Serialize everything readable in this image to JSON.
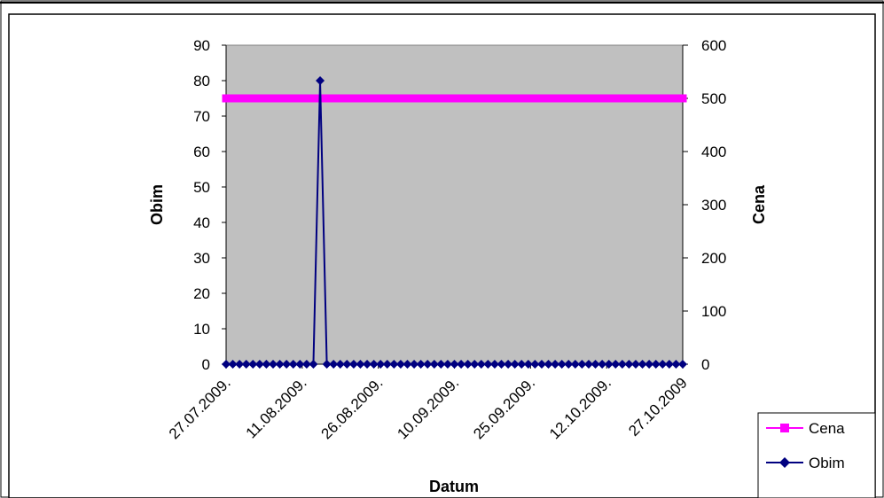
{
  "chart_data": {
    "type": "line",
    "title": "",
    "xlabel": "Datum",
    "ylabel_left": "Obim",
    "ylabel_right": "Cena",
    "x_ticks": [
      "27.07.2009.",
      "11.08.2009.",
      "26.08.2009.",
      "10.09.2009.",
      "25.09.2009.",
      "12.10.2009.",
      "27.10.2009"
    ],
    "y_left": {
      "min": 0,
      "max": 90,
      "step": 10,
      "ticks": [
        "0",
        "10",
        "20",
        "30",
        "40",
        "50",
        "60",
        "70",
        "80",
        "90"
      ]
    },
    "y_right": {
      "min": 0,
      "max": 600,
      "step": 100,
      "ticks": [
        "0",
        "100",
        "200",
        "300",
        "400",
        "500",
        "600"
      ]
    },
    "grid": false,
    "plot_background": "#c0c0c0",
    "legend_position": "right",
    "series": [
      {
        "name": "Cena",
        "axis": "right",
        "color": "#ff00ff",
        "marker": "square",
        "point_count": 69,
        "constant_value": 500
      },
      {
        "name": "Obim",
        "axis": "left",
        "color": "#000080",
        "marker": "diamond",
        "point_count": 69,
        "values": [
          0,
          0,
          0,
          0,
          0,
          0,
          0,
          0,
          0,
          0,
          0,
          0,
          0,
          0,
          80,
          0,
          0,
          0,
          0,
          0,
          0,
          0,
          0,
          0,
          0,
          0,
          0,
          0,
          0,
          0,
          0,
          0,
          0,
          0,
          0,
          0,
          0,
          0,
          0,
          0,
          0,
          0,
          0,
          0,
          0,
          0,
          0,
          0,
          0,
          0,
          0,
          0,
          0,
          0,
          0,
          0,
          0,
          0,
          0,
          0,
          0,
          0,
          0,
          0,
          0,
          0,
          0,
          0,
          0
        ]
      }
    ]
  }
}
